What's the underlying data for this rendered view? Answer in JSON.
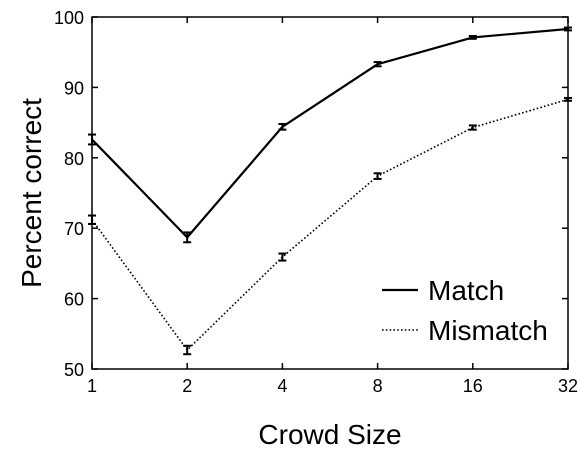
{
  "chart_data": {
    "type": "line",
    "title": "",
    "xlabel": "Crowd Size",
    "ylabel": "Percent correct",
    "x_categories": [
      "1",
      "2",
      "4",
      "8",
      "16",
      "32"
    ],
    "x": [
      1,
      2,
      4,
      8,
      16,
      32
    ],
    "x_scale": "log2",
    "ylim": [
      50,
      100
    ],
    "yticks": [
      "50",
      "60",
      "70",
      "80",
      "90",
      "100"
    ],
    "grid": false,
    "legend_position": "bottom-right",
    "series": [
      {
        "name": "Match",
        "line_style": "solid",
        "color": "#000000",
        "values": [
          82.6,
          68.7,
          84.4,
          93.3,
          97.1,
          98.3
        ],
        "errors": [
          0.7,
          0.7,
          0.4,
          0.3,
          0.2,
          0.2
        ]
      },
      {
        "name": "Mismatch",
        "line_style": "dotted",
        "color": "#000000",
        "values": [
          71.2,
          52.7,
          65.9,
          77.4,
          84.3,
          88.3
        ],
        "errors": [
          0.6,
          0.6,
          0.5,
          0.4,
          0.3,
          0.2
        ]
      }
    ]
  }
}
